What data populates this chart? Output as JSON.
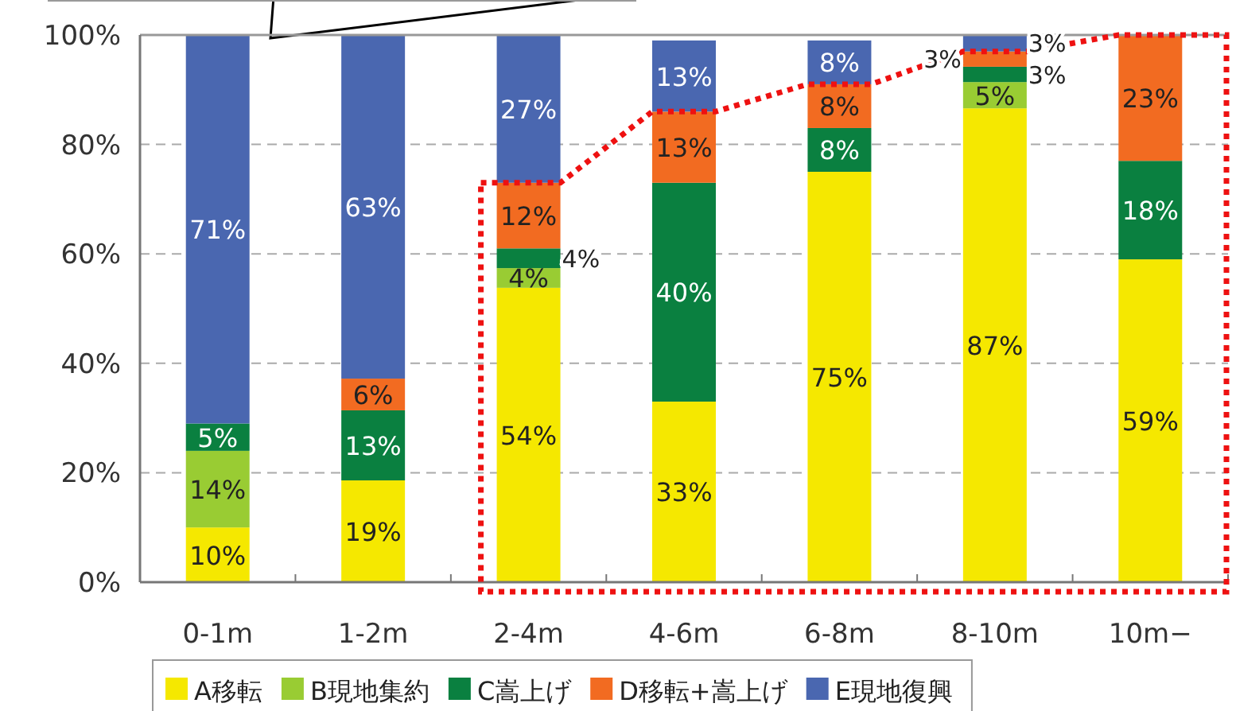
{
  "chart_data": {
    "type": "bar",
    "stacked": true,
    "categories": [
      "0-1m",
      "1-2m",
      "2-4m",
      "4-6m",
      "6-8m",
      "8-10m",
      "10m−"
    ],
    "ylim": [
      0,
      100
    ],
    "yticks": [
      {
        "value": 0,
        "label": "0%"
      },
      {
        "value": 20,
        "label": "20%"
      },
      {
        "value": 40,
        "label": "40%"
      },
      {
        "value": 60,
        "label": "60%"
      },
      {
        "value": 80,
        "label": "80%"
      },
      {
        "value": 100,
        "label": "100%"
      }
    ],
    "grid": "y",
    "legend": "bottom",
    "series": [
      {
        "name": "A移転",
        "color": "#f5e800",
        "values": [
          10,
          18.6,
          53.8,
          33,
          75,
          86.6,
          59
        ],
        "value_labels": [
          "10%",
          "19%",
          "54%",
          "33%",
          "75%",
          "87%",
          "59%"
        ]
      },
      {
        "name": "B現地集約",
        "color": "#99cc33",
        "values": [
          14,
          0,
          3.6,
          0,
          0,
          4.8,
          0
        ],
        "value_labels": [
          "14%",
          null,
          "4%",
          null,
          null,
          "5%",
          null
        ]
      },
      {
        "name": "C嵩上げ",
        "color": "#0a8040",
        "values": [
          5,
          12.8,
          3.6,
          40,
          8,
          2.8,
          18
        ],
        "value_labels": [
          "5%",
          "13%",
          "4%",
          "40%",
          "8%",
          "3%",
          "18%"
        ]
      },
      {
        "name": "D移転+嵩上げ",
        "color": "#f26b21",
        "values": [
          0,
          5.8,
          12,
          13,
          8,
          2.8,
          23
        ],
        "value_labels": [
          null,
          "6%",
          "12%",
          "13%",
          "8%",
          "3%",
          "23%"
        ]
      },
      {
        "name": "E現地復興",
        "color": "#4a67b0",
        "values": [
          71,
          62.8,
          27,
          13,
          8,
          3,
          0
        ],
        "value_labels": [
          "71%",
          "63%",
          "27%",
          "13%",
          "8%",
          "3%",
          null
        ]
      }
    ]
  }
}
